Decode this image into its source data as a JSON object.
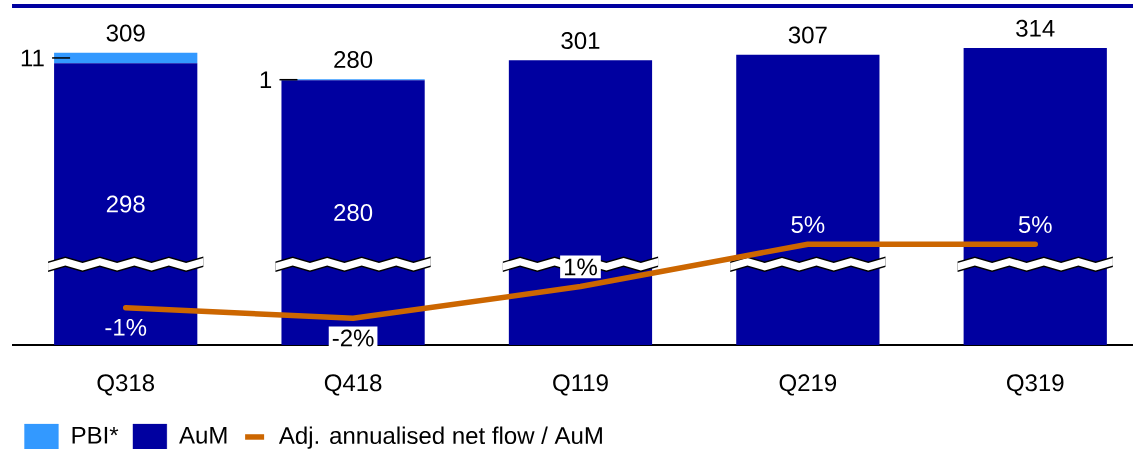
{
  "chart_data": {
    "type": "bar",
    "stacked": true,
    "tick_labels": "x",
    "legend": "bottom left",
    "categories": [
      "Q318",
      "Q418",
      "Q119",
      "Q219",
      "Q319"
    ],
    "series": [
      {
        "name": "AuM",
        "color": "#0000a0",
        "values": [
          298,
          280,
          301,
          307,
          314
        ],
        "value_labels": [
          "298",
          "280",
          null,
          null,
          null
        ]
      },
      {
        "name": "PBI*",
        "color": "#3399ff",
        "values": [
          11,
          1,
          null,
          null,
          null
        ],
        "value_labels": [
          "11",
          "1",
          null,
          null,
          null
        ]
      },
      {
        "name": "Adj. annualised net flow / AuM",
        "type": "line",
        "axis": "y2",
        "color": "#cc6600",
        "values": [
          -1,
          -2,
          1,
          5,
          5
        ],
        "value_labels": [
          "-1%",
          "-2%",
          "1%",
          "5%",
          "5%"
        ]
      }
    ],
    "totals": [
      "309",
      "280",
      "301",
      "307",
      "314"
    ]
  }
}
